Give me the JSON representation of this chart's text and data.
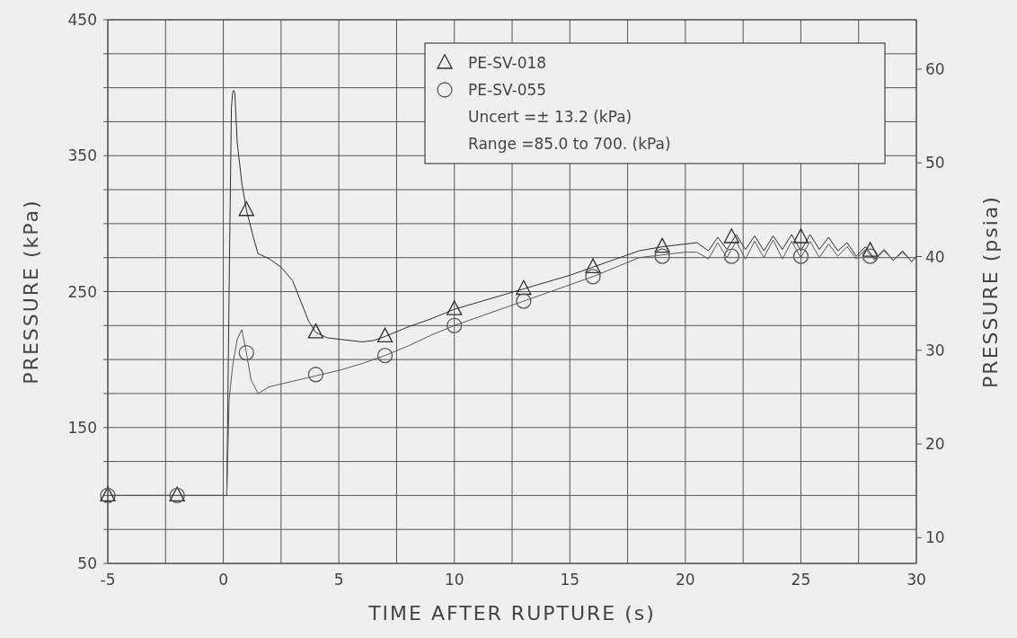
{
  "chart_data": {
    "type": "line",
    "xlabel": "TIME AFTER RUPTURE (s)",
    "ylabel": "PRESSURE (kPa)",
    "y2label": "PRESSURE (psia)",
    "xlim": [
      -5,
      30
    ],
    "xticks": [
      -5,
      {
        "value": -2.5,
        "label": null
      },
      0,
      {
        "value": 2.5,
        "label": null
      },
      5,
      {
        "value": 7.5,
        "label": null
      },
      10,
      {
        "value": 12.5,
        "label": null
      },
      15,
      {
        "value": 17.5,
        "label": null
      },
      20,
      {
        "value": 22.5,
        "label": null
      },
      25,
      {
        "value": 27.5,
        "label": null
      },
      30
    ],
    "ylim": [
      50,
      450
    ],
    "yticks": [
      50,
      {
        "value": 75,
        "label": null
      },
      {
        "value": 100,
        "label": null
      },
      {
        "value": 125,
        "label": null
      },
      150,
      {
        "value": 175,
        "label": null
      },
      {
        "value": 200,
        "label": null
      },
      {
        "value": 225,
        "label": null
      },
      250,
      {
        "value": 275,
        "label": null
      },
      {
        "value": 300,
        "label": null
      },
      {
        "value": 325,
        "label": null
      },
      350,
      {
        "value": 375,
        "label": null
      },
      {
        "value": 400,
        "label": null
      },
      {
        "value": 425,
        "label": null
      },
      450
    ],
    "y2lim": [
      7.252,
      65.27
    ],
    "y2ticks": [
      10,
      20,
      30,
      40,
      50,
      60
    ],
    "grid": true,
    "legend": "top right",
    "annotations": [
      "Uncert =± 13.2 (kPa)",
      "Range =85.0 to 700. (kPa)"
    ],
    "series": [
      {
        "color": "#2e2e2e",
        "marker": "none",
        "x": [
          -5,
          0.15,
          0.25,
          0.35,
          0.4,
          0.45,
          0.5,
          0.6,
          0.8,
          1.0,
          1.3,
          1.5,
          2,
          2.5,
          3,
          3.3,
          3.7,
          4,
          4.5,
          5,
          6,
          6.5,
          7,
          8,
          9,
          10,
          11,
          12,
          13,
          14,
          15,
          16,
          17,
          18,
          19,
          20,
          20.5,
          21,
          21.4,
          21.8,
          22.2,
          22.6,
          23,
          23.4,
          23.8,
          24.2,
          24.6,
          25,
          25.4,
          25.8,
          26.2,
          26.6,
          27,
          27.4,
          27.8,
          28.2,
          28.6,
          29,
          29.4,
          29.8,
          30
        ],
        "values": [
          100,
          100,
          250,
          385,
          396,
          398,
          396,
          360,
          330,
          310,
          290,
          278,
          274,
          268,
          258,
          245,
          228,
          220,
          216,
          215,
          213,
          214,
          217,
          224,
          230,
          237,
          242,
          247,
          252,
          257,
          262,
          268,
          274,
          280,
          283,
          285,
          286,
          280,
          290,
          281,
          292,
          281,
          291,
          280,
          291,
          281,
          292,
          280,
          292,
          281,
          290,
          280,
          286,
          276,
          283,
          274,
          281,
          273,
          280,
          272,
          276
        ]
      },
      {
        "color": "#5a5a5a",
        "marker": "none",
        "x": [
          -5,
          0.15,
          0.25,
          0.4,
          0.6,
          0.8,
          1.0,
          1.2,
          1.5,
          2,
          2.5,
          3,
          3.5,
          4,
          5,
          6,
          7,
          8,
          9,
          10,
          11,
          12,
          13,
          14,
          15,
          16,
          17,
          18,
          19,
          20,
          20.5,
          21,
          21.4,
          21.8,
          22.2,
          22.6,
          23,
          23.4,
          23.8,
          24.2,
          24.6,
          25,
          25.4,
          25.8,
          26.2,
          26.6,
          27,
          27.4,
          27.8,
          28.2,
          28.6,
          29,
          29.4,
          29.8,
          30
        ],
        "values": [
          100,
          100,
          170,
          195,
          215,
          222,
          205,
          185,
          175,
          180,
          182,
          184,
          186,
          188,
          192,
          197,
          203,
          210,
          218,
          225,
          231,
          237,
          243,
          249,
          255,
          261,
          268,
          275,
          277,
          279,
          279,
          274,
          286,
          275,
          287,
          274,
          287,
          275,
          288,
          274,
          287,
          275,
          287,
          275,
          285,
          276,
          283,
          274,
          281,
          273,
          280,
          273,
          279,
          272,
          276
        ]
      },
      {
        "type": "scatter",
        "name": "PE-SV-018",
        "color": "#2e2e2e",
        "marker": "triangle",
        "x": [
          -5,
          -2,
          1,
          4,
          7,
          10,
          13,
          16,
          19,
          22,
          25,
          28
        ],
        "values": [
          100,
          100,
          310,
          220,
          217,
          237,
          252,
          268,
          283,
          290,
          290,
          280
        ]
      },
      {
        "type": "scatter",
        "name": "PE-SV-055",
        "color": "#5a5a5a",
        "marker": "circle",
        "x": [
          -5,
          -2,
          1,
          4,
          7,
          10,
          13,
          16,
          19,
          22,
          25,
          28
        ],
        "values": [
          100,
          100,
          205,
          189,
          203,
          225,
          243,
          261,
          276,
          276,
          276,
          276
        ]
      }
    ]
  }
}
